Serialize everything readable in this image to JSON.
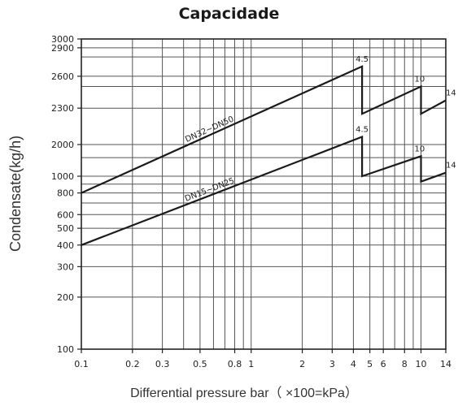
{
  "chart_data": {
    "type": "line",
    "title": "Capacidade",
    "xlabel": "Differential pressure bar（ ×100=kPa）",
    "ylabel": "Condensate(kg/h)",
    "x_scale": "log",
    "y_scale": "custom-log",
    "xlim": [
      0.1,
      14
    ],
    "ylim": [
      100,
      3000
    ],
    "grid": true,
    "x_ticks": [
      0.1,
      0.2,
      0.3,
      0.5,
      0.8,
      1,
      2,
      3,
      4,
      5,
      6,
      8,
      10,
      14
    ],
    "y_ticks": [
      100,
      200,
      300,
      400,
      500,
      600,
      800,
      1000,
      2000,
      2300,
      2600,
      2900,
      3000
    ],
    "series": [
      {
        "name": "DN32~DN50",
        "segments": [
          {
            "label": "4.5",
            "points": [
              [
                0.1,
                800
              ],
              [
                4.5,
                2700
              ],
              [
                4.5,
                2250
              ]
            ]
          },
          {
            "label": "10",
            "points": [
              [
                4.5,
                2250
              ],
              [
                10,
                2500
              ],
              [
                10,
                2250
              ]
            ]
          },
          {
            "label": "14",
            "points": [
              [
                10,
                2250
              ],
              [
                14,
                2370
              ]
            ]
          }
        ]
      },
      {
        "name": "DN15~DN25",
        "segments": [
          {
            "label": "4.5",
            "points": [
              [
                0.1,
                400
              ],
              [
                4.5,
                2060
              ],
              [
                4.5,
                1000
              ]
            ]
          },
          {
            "label": "10",
            "points": [
              [
                4.5,
                1000
              ],
              [
                10,
                1550
              ],
              [
                10,
                930
              ]
            ]
          },
          {
            "label": "14",
            "points": [
              [
                10,
                930
              ],
              [
                14,
                1080
              ]
            ]
          }
        ]
      }
    ]
  }
}
